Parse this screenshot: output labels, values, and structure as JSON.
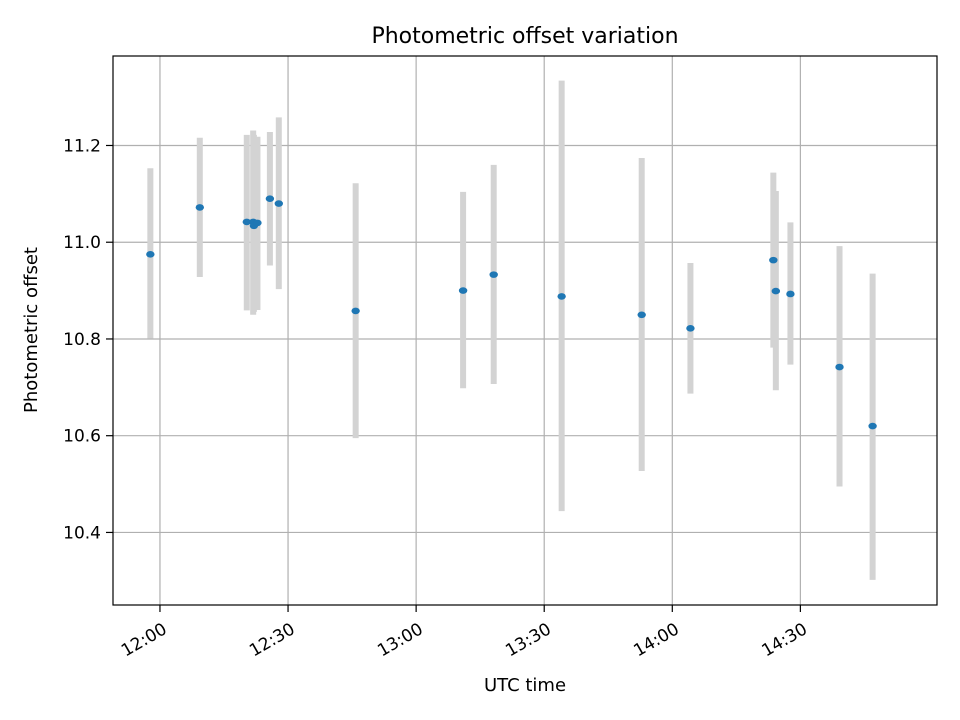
{
  "chart_data": {
    "type": "scatter",
    "title": "Photometric offset variation",
    "xlabel": "UTC time",
    "ylabel": "Photometric offset",
    "x_axis_type": "time",
    "xlim": [
      "11:49",
      "15:02"
    ],
    "ylim": [
      10.25,
      11.385
    ],
    "x_ticks": [
      "12:00",
      "12:30",
      "13:00",
      "13:30",
      "14:00",
      "14:30"
    ],
    "y_ticks": [
      10.4,
      10.6,
      10.8,
      11.0,
      11.2
    ],
    "y_tick_labels": [
      "10.4",
      "10.6",
      "10.8",
      "11.0",
      "11.2"
    ],
    "grid": true,
    "legend": "none",
    "colors": {
      "point": "#1f77b4",
      "errorbar": "#d3d3d3",
      "grid": "#b0b0b0",
      "axes": "#000000"
    },
    "points": [
      {
        "time": "11:57:45",
        "y": 10.975,
        "y_low": 10.801,
        "y_high": 11.153
      },
      {
        "time": "12:09:20",
        "y": 11.072,
        "y_low": 10.928,
        "y_high": 11.216
      },
      {
        "time": "12:20:20",
        "y": 11.042,
        "y_low": 10.859,
        "y_high": 11.222
      },
      {
        "time": "12:21:50",
        "y": 11.042,
        "y_low": 10.85,
        "y_high": 11.231
      },
      {
        "time": "12:22:00",
        "y": 11.034,
        "y_low": 10.856,
        "y_high": 11.222
      },
      {
        "time": "12:22:50",
        "y": 11.04,
        "y_low": 10.86,
        "y_high": 11.218
      },
      {
        "time": "12:25:45",
        "y": 11.09,
        "y_low": 10.952,
        "y_high": 11.228
      },
      {
        "time": "12:27:50",
        "y": 11.08,
        "y_low": 10.903,
        "y_high": 11.258
      },
      {
        "time": "12:45:50",
        "y": 10.858,
        "y_low": 10.595,
        "y_high": 11.122
      },
      {
        "time": "13:11:00",
        "y": 10.9,
        "y_low": 10.698,
        "y_high": 11.104
      },
      {
        "time": "13:18:10",
        "y": 10.933,
        "y_low": 10.707,
        "y_high": 11.16
      },
      {
        "time": "13:34:05",
        "y": 10.888,
        "y_low": 10.444,
        "y_high": 11.334
      },
      {
        "time": "13:52:50",
        "y": 10.85,
        "y_low": 10.527,
        "y_high": 11.174
      },
      {
        "time": "14:04:15",
        "y": 10.822,
        "y_low": 10.687,
        "y_high": 10.957
      },
      {
        "time": "14:23:40",
        "y": 10.963,
        "y_low": 10.782,
        "y_high": 11.144
      },
      {
        "time": "14:24:15",
        "y": 10.899,
        "y_low": 10.694,
        "y_high": 11.106
      },
      {
        "time": "14:27:40",
        "y": 10.893,
        "y_low": 10.747,
        "y_high": 11.041
      },
      {
        "time": "14:39:10",
        "y": 10.742,
        "y_low": 10.495,
        "y_high": 10.992
      },
      {
        "time": "14:46:55",
        "y": 10.62,
        "y_low": 10.302,
        "y_high": 10.935
      }
    ]
  }
}
